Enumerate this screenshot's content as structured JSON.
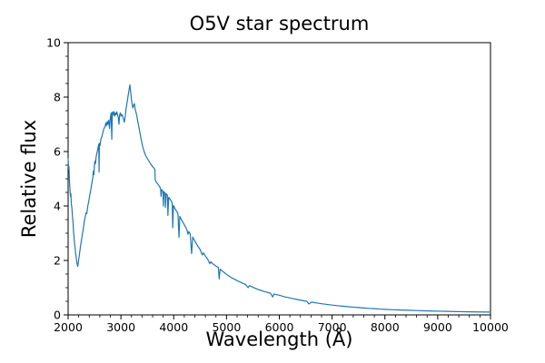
{
  "figure": {
    "background": "#ffffff"
  },
  "chart_data": {
    "type": "line",
    "title": "O5V star spectrum",
    "xlabel": "Wavelength (Å)",
    "ylabel": "Relative flux",
    "xlim": [
      2000,
      10000
    ],
    "ylim": [
      0,
      10
    ],
    "xticks": [
      2000,
      3000,
      4000,
      5000,
      6000,
      7000,
      8000,
      9000,
      10000
    ],
    "yticks": [
      0,
      2,
      4,
      6,
      8,
      10
    ],
    "x_minor_step": 200,
    "y_minor_step": 0.5,
    "grid": false,
    "legend_position": "none",
    "line_color": "#1f77b4",
    "axis_color": "#000000",
    "series": [
      {
        "name": "O5V spectrum",
        "points": [
          [
            2000,
            5.75
          ],
          [
            2008,
            5.35
          ],
          [
            2016,
            5.45
          ],
          [
            2025,
            4.95
          ],
          [
            2035,
            4.6
          ],
          [
            2045,
            4.35
          ],
          [
            2052,
            4.45
          ],
          [
            2062,
            4.05
          ],
          [
            2072,
            3.92
          ],
          [
            2082,
            3.62
          ],
          [
            2092,
            3.45
          ],
          [
            2102,
            3.05
          ],
          [
            2112,
            2.87
          ],
          [
            2122,
            2.62
          ],
          [
            2132,
            2.47
          ],
          [
            2142,
            2.27
          ],
          [
            2152,
            2.12
          ],
          [
            2162,
            1.97
          ],
          [
            2172,
            1.87
          ],
          [
            2183,
            1.78
          ],
          [
            2193,
            1.93
          ],
          [
            2203,
            2.08
          ],
          [
            2213,
            2.2
          ],
          [
            2223,
            2.35
          ],
          [
            2233,
            2.5
          ],
          [
            2243,
            2.62
          ],
          [
            2253,
            2.75
          ],
          [
            2263,
            2.88
          ],
          [
            2273,
            3.0
          ],
          [
            2283,
            3.1
          ],
          [
            2293,
            3.25
          ],
          [
            2303,
            3.38
          ],
          [
            2313,
            3.5
          ],
          [
            2323,
            3.6
          ],
          [
            2333,
            3.68
          ],
          [
            2343,
            3.76
          ],
          [
            2353,
            3.72
          ],
          [
            2363,
            3.85
          ],
          [
            2373,
            4.0
          ],
          [
            2383,
            4.1
          ],
          [
            2395,
            4.22
          ],
          [
            2410,
            4.4
          ],
          [
            2425,
            4.55
          ],
          [
            2440,
            4.72
          ],
          [
            2455,
            4.9
          ],
          [
            2468,
            5.05
          ],
          [
            2478,
            5.28
          ],
          [
            2488,
            5.15
          ],
          [
            2498,
            5.5
          ],
          [
            2508,
            5.65
          ],
          [
            2518,
            5.55
          ],
          [
            2530,
            5.8
          ],
          [
            2545,
            5.95
          ],
          [
            2558,
            6.05
          ],
          [
            2570,
            6.18
          ],
          [
            2580,
            6.27
          ],
          [
            2586,
            5.25
          ],
          [
            2592,
            6.3
          ],
          [
            2605,
            6.22
          ],
          [
            2620,
            6.45
          ],
          [
            2640,
            6.55
          ],
          [
            2660,
            6.72
          ],
          [
            2680,
            6.85
          ],
          [
            2700,
            6.92
          ],
          [
            2714,
            7.05
          ],
          [
            2726,
            6.95
          ],
          [
            2740,
            7.1
          ],
          [
            2754,
            7.0
          ],
          [
            2768,
            7.15
          ],
          [
            2784,
            6.85
          ],
          [
            2800,
            7.25
          ],
          [
            2814,
            7.42
          ],
          [
            2827,
            6.45
          ],
          [
            2838,
            7.45
          ],
          [
            2852,
            7.35
          ],
          [
            2866,
            7.47
          ],
          [
            2880,
            7.3
          ],
          [
            2894,
            7.42
          ],
          [
            2908,
            7.35
          ],
          [
            2922,
            7.46
          ],
          [
            2936,
            7.35
          ],
          [
            2950,
            7.25
          ],
          [
            2963,
            7.0
          ],
          [
            2976,
            7.35
          ],
          [
            2990,
            7.42
          ],
          [
            3004,
            7.3
          ],
          [
            3018,
            7.36
          ],
          [
            3032,
            7.3
          ],
          [
            3048,
            7.2
          ],
          [
            3065,
            7.08
          ],
          [
            3082,
            7.3
          ],
          [
            3096,
            7.55
          ],
          [
            3110,
            7.72
          ],
          [
            3125,
            7.9
          ],
          [
            3140,
            8.1
          ],
          [
            3155,
            8.27
          ],
          [
            3170,
            8.45
          ],
          [
            3185,
            8.18
          ],
          [
            3200,
            7.9
          ],
          [
            3213,
            7.73
          ],
          [
            3225,
            7.6
          ],
          [
            3240,
            7.7
          ],
          [
            3255,
            7.76
          ],
          [
            3270,
            7.55
          ],
          [
            3285,
            7.45
          ],
          [
            3300,
            7.32
          ],
          [
            3325,
            7.05
          ],
          [
            3352,
            6.78
          ],
          [
            3380,
            6.48
          ],
          [
            3410,
            6.2
          ],
          [
            3440,
            6.0
          ],
          [
            3470,
            5.85
          ],
          [
            3500,
            5.75
          ],
          [
            3530,
            5.65
          ],
          [
            3560,
            5.55
          ],
          [
            3592,
            5.47
          ],
          [
            3620,
            5.4
          ],
          [
            3643,
            5.35
          ],
          [
            3650,
            4.95
          ],
          [
            3672,
            4.87
          ],
          [
            3700,
            4.8
          ],
          [
            3730,
            4.72
          ],
          [
            3752,
            4.63
          ],
          [
            3760,
            4.35
          ],
          [
            3772,
            4.6
          ],
          [
            3796,
            4.55
          ],
          [
            3804,
            4.0
          ],
          [
            3814,
            4.52
          ],
          [
            3836,
            4.48
          ],
          [
            3844,
            3.95
          ],
          [
            3856,
            4.45
          ],
          [
            3880,
            4.4
          ],
          [
            3890,
            3.65
          ],
          [
            3904,
            4.32
          ],
          [
            3930,
            4.25
          ],
          [
            3956,
            4.17
          ],
          [
            3972,
            4.1
          ],
          [
            3981,
            3.2
          ],
          [
            3994,
            4.02
          ],
          [
            4020,
            3.92
          ],
          [
            4050,
            3.82
          ],
          [
            4080,
            3.73
          ],
          [
            4100,
            2.85
          ],
          [
            4116,
            3.62
          ],
          [
            4146,
            3.5
          ],
          [
            4180,
            3.38
          ],
          [
            4215,
            3.26
          ],
          [
            4250,
            3.13
          ],
          [
            4271,
            2.96
          ],
          [
            4286,
            3.06
          ],
          [
            4312,
            2.98
          ],
          [
            4339,
            2.25
          ],
          [
            4360,
            2.86
          ],
          [
            4395,
            2.73
          ],
          [
            4430,
            2.61
          ],
          [
            4465,
            2.5
          ],
          [
            4500,
            2.4
          ],
          [
            4541,
            2.2
          ],
          [
            4562,
            2.28
          ],
          [
            4600,
            2.16
          ],
          [
            4640,
            2.06
          ],
          [
            4684,
            1.88
          ],
          [
            4700,
            1.95
          ],
          [
            4740,
            1.88
          ],
          [
            4780,
            1.82
          ],
          [
            4820,
            1.77
          ],
          [
            4845,
            1.74
          ],
          [
            4861,
            1.32
          ],
          [
            4880,
            1.68
          ],
          [
            4920,
            1.61
          ],
          [
            4960,
            1.55
          ],
          [
            5000,
            1.49
          ],
          [
            5050,
            1.42
          ],
          [
            5100,
            1.36
          ],
          [
            5150,
            1.31
          ],
          [
            5200,
            1.26
          ],
          [
            5255,
            1.21
          ],
          [
            5310,
            1.16
          ],
          [
            5360,
            1.12
          ],
          [
            5410,
            1.0
          ],
          [
            5435,
            1.08
          ],
          [
            5475,
            1.04
          ],
          [
            5530,
            0.99
          ],
          [
            5590,
            0.94
          ],
          [
            5650,
            0.9
          ],
          [
            5710,
            0.86
          ],
          [
            5770,
            0.83
          ],
          [
            5830,
            0.8
          ],
          [
            5874,
            0.66
          ],
          [
            5900,
            0.77
          ],
          [
            5960,
            0.74
          ],
          [
            6025,
            0.71
          ],
          [
            6090,
            0.67
          ],
          [
            6160,
            0.64
          ],
          [
            6230,
            0.61
          ],
          [
            6300,
            0.58
          ],
          [
            6380,
            0.55
          ],
          [
            6460,
            0.52
          ],
          [
            6520,
            0.5
          ],
          [
            6562,
            0.4
          ],
          [
            6610,
            0.47
          ],
          [
            6700,
            0.44
          ],
          [
            6800,
            0.41
          ],
          [
            6900,
            0.385
          ],
          [
            7000,
            0.36
          ],
          [
            7100,
            0.34
          ],
          [
            7200,
            0.32
          ],
          [
            7300,
            0.3
          ],
          [
            7400,
            0.285
          ],
          [
            7500,
            0.27
          ],
          [
            7600,
            0.255
          ],
          [
            7700,
            0.24
          ],
          [
            7800,
            0.23
          ],
          [
            7900,
            0.215
          ],
          [
            8000,
            0.205
          ],
          [
            8150,
            0.19
          ],
          [
            8300,
            0.18
          ],
          [
            8450,
            0.17
          ],
          [
            8600,
            0.16
          ],
          [
            8750,
            0.15
          ],
          [
            8900,
            0.142
          ],
          [
            9050,
            0.135
          ],
          [
            9200,
            0.128
          ],
          [
            9350,
            0.122
          ],
          [
            9500,
            0.117
          ],
          [
            9650,
            0.112
          ],
          [
            9800,
            0.108
          ],
          [
            10000,
            0.103
          ]
        ]
      }
    ]
  }
}
